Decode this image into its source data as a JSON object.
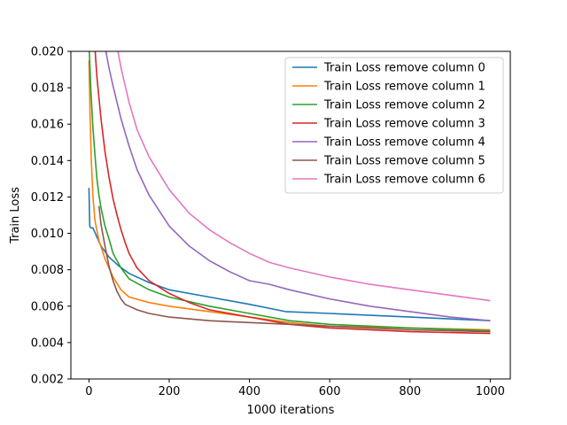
{
  "chart_data": {
    "type": "line",
    "title": "",
    "xlabel": "1000 iterations",
    "ylabel": "Train Loss",
    "xlim": [
      -45,
      1050
    ],
    "ylim": [
      0.002,
      0.02
    ],
    "xticks": [
      0,
      200,
      400,
      600,
      800,
      1000
    ],
    "yticks": [
      0.002,
      0.004,
      0.006,
      0.008,
      0.01,
      0.012,
      0.014,
      0.016,
      0.018,
      0.02
    ],
    "xtick_labels": [
      "0",
      "200",
      "400",
      "600",
      "800",
      "1000"
    ],
    "ytick_labels": [
      "0.002",
      "0.004",
      "0.006",
      "0.008",
      "0.010",
      "0.012",
      "0.014",
      "0.016",
      "0.018",
      "0.020"
    ],
    "grid": false,
    "legend_position": "top-right",
    "series": [
      {
        "name": "Train Loss remove column 0",
        "color": "#1f77b4",
        "x": [
          0,
          2,
          5,
          10,
          20,
          30,
          50,
          75,
          100,
          150,
          200,
          300,
          400,
          490,
          600,
          800,
          1000
        ],
        "y": [
          0.0125,
          0.0104,
          0.0103,
          0.0103,
          0.0098,
          0.0093,
          0.0087,
          0.0082,
          0.0078,
          0.0073,
          0.0069,
          0.0065,
          0.0061,
          0.0057,
          0.0056,
          0.0054,
          0.0052
        ]
      },
      {
        "name": "Train Loss remove column 1",
        "color": "#ff7f0e",
        "x": [
          0,
          3,
          6,
          10,
          15,
          25,
          40,
          60,
          80,
          100,
          150,
          200,
          300,
          400,
          500,
          600,
          800,
          1000
        ],
        "y": [
          0.0195,
          0.0165,
          0.014,
          0.012,
          0.0107,
          0.0096,
          0.0086,
          0.0076,
          0.0069,
          0.0065,
          0.0062,
          0.006,
          0.0057,
          0.0054,
          0.0051,
          0.0049,
          0.0048,
          0.0047
        ]
      },
      {
        "name": "Train Loss remove column 2",
        "color": "#2ca02c",
        "x": [
          0,
          5,
          10,
          15,
          20,
          25,
          30,
          40,
          50,
          60,
          80,
          100,
          150,
          200,
          300,
          400,
          500,
          600,
          800,
          1000
        ],
        "y": [
          0.0205,
          0.0178,
          0.0158,
          0.0143,
          0.013,
          0.0121,
          0.0114,
          0.0104,
          0.0097,
          0.0089,
          0.0081,
          0.0075,
          0.0069,
          0.0065,
          0.006,
          0.0056,
          0.0052,
          0.005,
          0.0048,
          0.00465
        ]
      },
      {
        "name": "Train Loss remove column 3",
        "color": "#d62728",
        "x": [
          14,
          20,
          30,
          40,
          50,
          60,
          70,
          80,
          90,
          100,
          120,
          150,
          200,
          250,
          300,
          400,
          500,
          600,
          800,
          1000
        ],
        "y": [
          0.0205,
          0.0186,
          0.0163,
          0.0145,
          0.0131,
          0.0119,
          0.011,
          0.0102,
          0.0095,
          0.0089,
          0.0081,
          0.0074,
          0.0067,
          0.0062,
          0.0058,
          0.0054,
          0.005,
          0.0048,
          0.0046,
          0.0045
        ]
      },
      {
        "name": "Train Loss remove column 4",
        "color": "#9467bd",
        "x": [
          38,
          50,
          60,
          80,
          100,
          120,
          150,
          200,
          250,
          300,
          350,
          400,
          450,
          500,
          600,
          700,
          800,
          900,
          1000
        ],
        "y": [
          0.0205,
          0.0191,
          0.0181,
          0.0163,
          0.0148,
          0.0135,
          0.0121,
          0.0104,
          0.0093,
          0.0085,
          0.0079,
          0.0074,
          0.0072,
          0.0069,
          0.0064,
          0.006,
          0.0057,
          0.0054,
          0.0052
        ]
      },
      {
        "name": "Train Loss remove column 5",
        "color": "#8c564b",
        "x": [
          25,
          30,
          40,
          50,
          60,
          70,
          80,
          90,
          100,
          120,
          150,
          200,
          300,
          400,
          500,
          600,
          800,
          1000
        ],
        "y": [
          0.0115,
          0.0105,
          0.0093,
          0.0082,
          0.0074,
          0.0068,
          0.0064,
          0.0061,
          0.006,
          0.0058,
          0.0056,
          0.0054,
          0.0052,
          0.0051,
          0.005,
          0.0049,
          0.0047,
          0.0046
        ]
      },
      {
        "name": "Train Loss remove column 6",
        "color": "#e377c2",
        "x": [
          68,
          80,
          100,
          120,
          150,
          200,
          250,
          300,
          350,
          400,
          450,
          500,
          600,
          700,
          800,
          900,
          1000
        ],
        "y": [
          0.0205,
          0.0191,
          0.0172,
          0.0157,
          0.0142,
          0.0124,
          0.0111,
          0.0102,
          0.0095,
          0.0089,
          0.0084,
          0.0081,
          0.0076,
          0.0072,
          0.0069,
          0.0066,
          0.0063
        ]
      }
    ]
  }
}
